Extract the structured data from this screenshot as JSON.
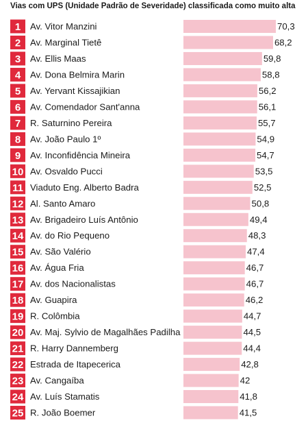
{
  "header": {
    "title": "Vias com UPS (Unidade Padrão de Severidade) classificada como muito alta"
  },
  "colors": {
    "rank_badge": "#e0293c",
    "bar": "#f6c3cd"
  },
  "chart_data": {
    "type": "bar",
    "orientation": "horizontal",
    "title": "Vias com UPS (Unidade Padrão de Severidade) classificada como muito alta",
    "xlim": [
      0,
      70.3
    ],
    "ranks": [
      "1",
      "2",
      "3",
      "4",
      "5",
      "6",
      "7",
      "8",
      "9",
      "10",
      "11",
      "12",
      "13",
      "14",
      "15",
      "16",
      "17",
      "18",
      "19",
      "20",
      "21",
      "22",
      "23",
      "24",
      "25"
    ],
    "categories": [
      "Av. Vitor Manzini",
      "Av. Marginal Tietê",
      "Av. Ellis Maas",
      "Av. Dona Belmira Marin",
      "Av. Yervant Kissajikian",
      "Av. Comendador Sant'anna",
      "R. Saturnino Pereira",
      "Av. João Paulo 1º",
      "Av. Inconfidência Mineira",
      "Av. Osvaldo Pucci",
      "Viaduto Eng. Alberto Badra",
      "Al. Santo Amaro",
      "Av. Brigadeiro Luís Antônio",
      "Av. do Rio Pequeno",
      "Av. São Valério",
      "Av. Água Fria",
      "Av. dos Nacionalistas",
      "Av. Guapira",
      "R. Colômbia",
      "Av. Maj. Sylvio de Magalhães Padilha",
      "R. Harry Dannemberg",
      "Estrada de Itapecerica",
      "Av. Cangaíba",
      "Av. Luís Stamatis",
      "R. João Boemer"
    ],
    "values": [
      70.3,
      68.2,
      59.8,
      58.8,
      56.2,
      56.1,
      55.7,
      54.9,
      54.7,
      53.5,
      52.5,
      50.8,
      49.4,
      48.3,
      47.4,
      46.7,
      46.7,
      46.2,
      44.7,
      44.5,
      44.4,
      42.8,
      42,
      41.8,
      41.5
    ],
    "value_labels": [
      "70,3",
      "68,2",
      "59,8",
      "58,8",
      "56,2",
      "56,1",
      "55,7",
      "54,9",
      "54,7",
      "53,5",
      "52,5",
      "50,8",
      "49,4",
      "48,3",
      "47,4",
      "46,7",
      "46,7",
      "46,2",
      "44,7",
      "44,5",
      "44,4",
      "42,8",
      "42",
      "41,8",
      "41,5"
    ]
  }
}
